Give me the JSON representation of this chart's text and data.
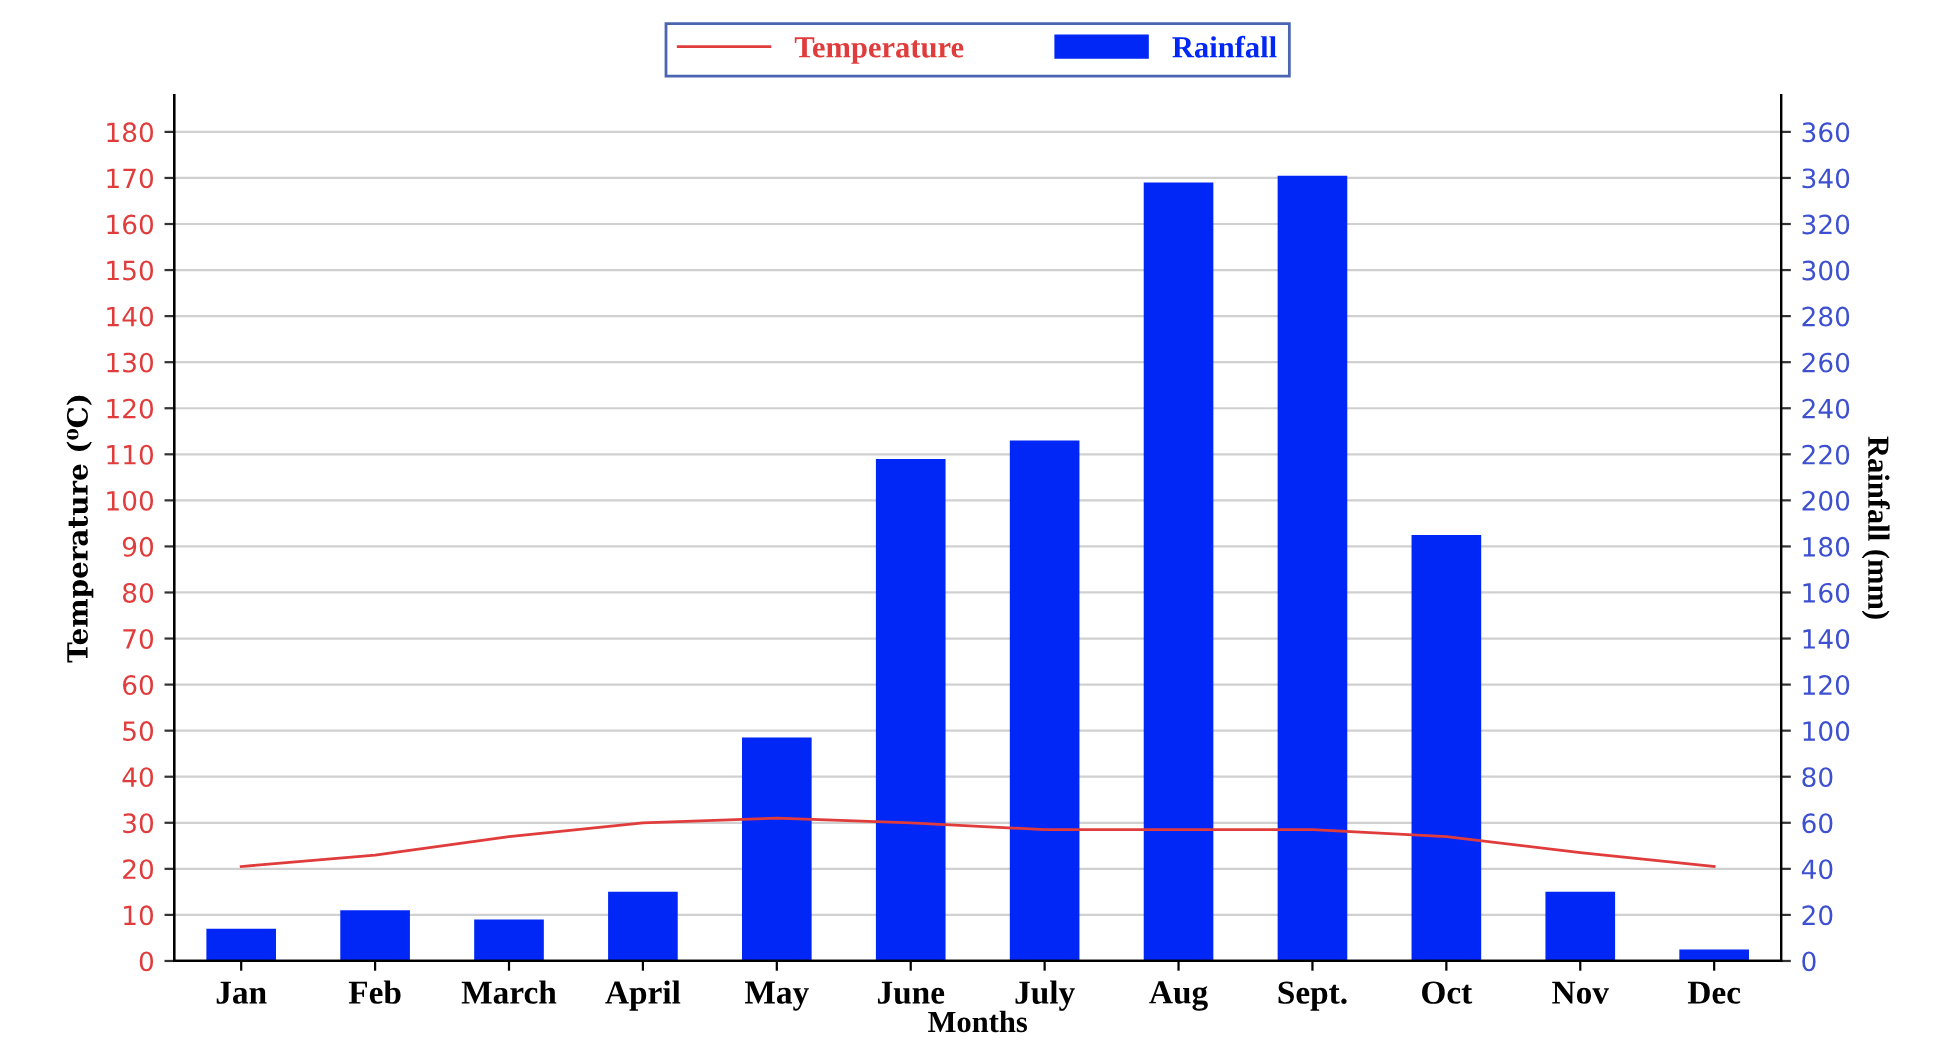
{
  "chart_data": {
    "type": "bar",
    "categories": [
      "Jan",
      "Feb",
      "March",
      "April",
      "May",
      "June",
      "July",
      "Aug",
      "Sept.",
      "Oct",
      "Nov",
      "Dec"
    ],
    "xlabel": "Months",
    "ylabel": "Temperature (⁰C)",
    "y2label": "Rainfall (mm)",
    "series": [
      {
        "name": "Temperature",
        "type": "line",
        "color": "#e03c3c",
        "values": [
          20.5,
          23,
          27,
          30,
          31,
          30,
          28.5,
          28.5,
          28.5,
          27,
          23.5,
          20.5
        ]
      },
      {
        "name": "Rainfall",
        "axis": "y2",
        "color": "#0027f5",
        "values": [
          14,
          22,
          18,
          30,
          97,
          218,
          226,
          338,
          341,
          185,
          30,
          5
        ]
      }
    ],
    "ylim": [
      0,
      188
    ],
    "yticks": [
      0,
      10,
      20,
      30,
      40,
      50,
      60,
      70,
      80,
      90,
      100,
      110,
      120,
      130,
      140,
      150,
      160,
      170,
      180
    ],
    "y2lim": [
      0,
      376
    ],
    "y2ticks": [
      0,
      20,
      40,
      60,
      80,
      100,
      120,
      140,
      160,
      180,
      200,
      220,
      240,
      260,
      280,
      300,
      320,
      340,
      360
    ],
    "grid": "y",
    "legend": "top",
    "marker": "none",
    "line_style": "solid"
  }
}
